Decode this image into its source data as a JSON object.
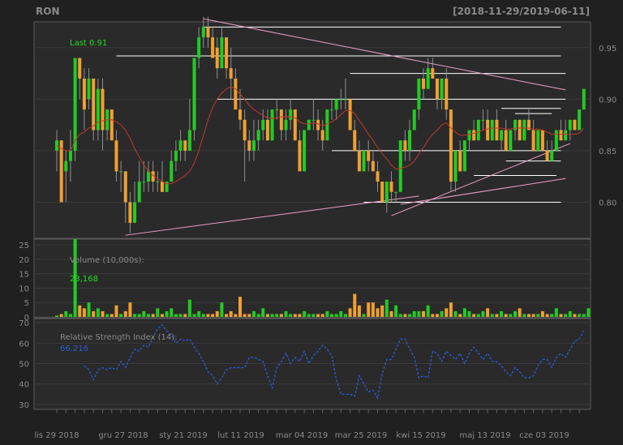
{
  "chart_data": {
    "type": "candlestick",
    "symbol": "RON",
    "date_range": "[2018-11-29/2019-06-11]",
    "last_label": "Last 0.91",
    "x_tick_labels": [
      "lis 29 2018",
      "gru 27 2018",
      "sty 21 2019",
      "lut 11 2019",
      "mar 04 2019",
      "mar 25 2019",
      "kwi 15 2019",
      "maj 13 2019",
      "cze 03 2019"
    ],
    "price_axis": {
      "ylim": [
        0.765,
        0.975
      ],
      "ticks": [
        0.8,
        0.85,
        0.9,
        0.95
      ],
      "tick_labels": [
        "0.80",
        "0.85",
        "0.90",
        "0.95"
      ]
    },
    "volume_panel": {
      "title": "Volume (10,000s):",
      "last_value": "23,168",
      "ylim": [
        0,
        27
      ],
      "ticks": [
        0,
        5,
        10,
        15,
        20,
        25
      ],
      "tick_labels": [
        "0",
        "5",
        "10",
        "15",
        "20",
        "25"
      ]
    },
    "rsi_panel": {
      "title": "Relative Strength Index (14):",
      "last_value": "66.216",
      "ylim": [
        28,
        72
      ],
      "ticks": [
        30,
        40,
        50,
        60,
        70
      ],
      "tick_labels": [
        "30",
        "40",
        "50",
        "60",
        "70"
      ]
    },
    "candles": [
      [
        0.85,
        0.87,
        0.83,
        0.86
      ],
      [
        0.86,
        0.86,
        0.8,
        0.8
      ],
      [
        0.83,
        0.85,
        0.8,
        0.84
      ],
      [
        0.84,
        0.87,
        0.82,
        0.85
      ],
      [
        0.85,
        0.94,
        0.84,
        0.94
      ],
      [
        0.94,
        0.94,
        0.9,
        0.92
      ],
      [
        0.92,
        0.93,
        0.87,
        0.89
      ],
      [
        0.9,
        0.93,
        0.89,
        0.92
      ],
      [
        0.92,
        0.92,
        0.86,
        0.87
      ],
      [
        0.87,
        0.92,
        0.86,
        0.91
      ],
      [
        0.91,
        0.92,
        0.85,
        0.87
      ],
      [
        0.87,
        0.89,
        0.86,
        0.89
      ],
      [
        0.89,
        0.89,
        0.86,
        0.86
      ],
      [
        0.86,
        0.87,
        0.82,
        0.83
      ],
      [
        0.83,
        0.84,
        0.81,
        0.83
      ],
      [
        0.83,
        0.83,
        0.78,
        0.8
      ],
      [
        0.8,
        0.81,
        0.77,
        0.78
      ],
      [
        0.78,
        0.82,
        0.78,
        0.8
      ],
      [
        0.8,
        0.84,
        0.8,
        0.82
      ],
      [
        0.82,
        0.84,
        0.81,
        0.82
      ],
      [
        0.82,
        0.84,
        0.81,
        0.83
      ],
      [
        0.83,
        0.84,
        0.81,
        0.82
      ],
      [
        0.82,
        0.83,
        0.81,
        0.82
      ],
      [
        0.82,
        0.84,
        0.81,
        0.81
      ],
      [
        0.81,
        0.82,
        0.81,
        0.82
      ],
      [
        0.82,
        0.85,
        0.82,
        0.84
      ],
      [
        0.84,
        0.86,
        0.83,
        0.85
      ],
      [
        0.85,
        0.87,
        0.84,
        0.86
      ],
      [
        0.86,
        0.86,
        0.84,
        0.85
      ],
      [
        0.85,
        0.9,
        0.85,
        0.87
      ],
      [
        0.87,
        0.94,
        0.86,
        0.94
      ],
      [
        0.94,
        0.97,
        0.93,
        0.96
      ],
      [
        0.96,
        0.98,
        0.95,
        0.97
      ],
      [
        0.97,
        0.98,
        0.95,
        0.96
      ],
      [
        0.96,
        0.97,
        0.94,
        0.94
      ],
      [
        0.95,
        0.96,
        0.92,
        0.93
      ],
      [
        0.93,
        0.97,
        0.93,
        0.96
      ],
      [
        0.96,
        0.96,
        0.92,
        0.93
      ],
      [
        0.93,
        0.95,
        0.9,
        0.92
      ],
      [
        0.92,
        0.93,
        0.89,
        0.89
      ],
      [
        0.89,
        0.91,
        0.87,
        0.88
      ],
      [
        0.88,
        0.89,
        0.82,
        0.86
      ],
      [
        0.86,
        0.87,
        0.84,
        0.85
      ],
      [
        0.85,
        0.88,
        0.84,
        0.86
      ],
      [
        0.86,
        0.88,
        0.85,
        0.87
      ],
      [
        0.87,
        0.89,
        0.86,
        0.88
      ],
      [
        0.88,
        0.89,
        0.86,
        0.86
      ],
      [
        0.86,
        0.89,
        0.86,
        0.89
      ],
      [
        0.89,
        0.9,
        0.88,
        0.89
      ],
      [
        0.89,
        0.89,
        0.86,
        0.87
      ],
      [
        0.87,
        0.89,
        0.86,
        0.88
      ],
      [
        0.88,
        0.9,
        0.87,
        0.89
      ],
      [
        0.89,
        0.89,
        0.86,
        0.86
      ],
      [
        0.86,
        0.87,
        0.83,
        0.83
      ],
      [
        0.83,
        0.87,
        0.83,
        0.87
      ],
      [
        0.87,
        0.88,
        0.87,
        0.88
      ],
      [
        0.88,
        0.9,
        0.87,
        0.88
      ],
      [
        0.88,
        0.89,
        0.86,
        0.87
      ],
      [
        0.87,
        0.88,
        0.85,
        0.86
      ],
      [
        0.86,
        0.89,
        0.86,
        0.89
      ],
      [
        0.89,
        0.9,
        0.88,
        0.89
      ],
      [
        0.89,
        0.9,
        0.88,
        0.9
      ],
      [
        0.9,
        0.91,
        0.89,
        0.9
      ],
      [
        0.9,
        0.92,
        0.89,
        0.9
      ],
      [
        0.9,
        0.9,
        0.87,
        0.87
      ],
      [
        0.87,
        0.88,
        0.85,
        0.85
      ],
      [
        0.85,
        0.86,
        0.83,
        0.83
      ],
      [
        0.83,
        0.85,
        0.83,
        0.85
      ],
      [
        0.85,
        0.86,
        0.83,
        0.84
      ],
      [
        0.84,
        0.85,
        0.83,
        0.83
      ],
      [
        0.83,
        0.84,
        0.81,
        0.82
      ],
      [
        0.82,
        0.82,
        0.8,
        0.8
      ],
      [
        0.8,
        0.82,
        0.79,
        0.82
      ],
      [
        0.82,
        0.83,
        0.8,
        0.81
      ],
      [
        0.81,
        0.81,
        0.8,
        0.81
      ],
      [
        0.81,
        0.86,
        0.81,
        0.86
      ],
      [
        0.86,
        0.87,
        0.84,
        0.85
      ],
      [
        0.85,
        0.88,
        0.84,
        0.87
      ],
      [
        0.87,
        0.89,
        0.87,
        0.89
      ],
      [
        0.89,
        0.92,
        0.88,
        0.92
      ],
      [
        0.92,
        0.93,
        0.9,
        0.91
      ],
      [
        0.91,
        0.94,
        0.91,
        0.93
      ],
      [
        0.93,
        0.94,
        0.92,
        0.92
      ],
      [
        0.92,
        0.92,
        0.89,
        0.9
      ],
      [
        0.9,
        0.92,
        0.89,
        0.92
      ],
      [
        0.92,
        0.93,
        0.88,
        0.89
      ],
      [
        0.89,
        0.89,
        0.81,
        0.82
      ],
      [
        0.82,
        0.85,
        0.81,
        0.85
      ],
      [
        0.85,
        0.86,
        0.83,
        0.83
      ],
      [
        0.83,
        0.86,
        0.83,
        0.86
      ],
      [
        0.86,
        0.87,
        0.85,
        0.87
      ],
      [
        0.87,
        0.88,
        0.86,
        0.86
      ],
      [
        0.86,
        0.88,
        0.86,
        0.88
      ],
      [
        0.88,
        0.89,
        0.87,
        0.88
      ],
      [
        0.88,
        0.89,
        0.86,
        0.86
      ],
      [
        0.86,
        0.88,
        0.86,
        0.88
      ],
      [
        0.88,
        0.89,
        0.86,
        0.86
      ],
      [
        0.86,
        0.87,
        0.85,
        0.87
      ],
      [
        0.87,
        0.88,
        0.85,
        0.85
      ],
      [
        0.85,
        0.87,
        0.85,
        0.87
      ],
      [
        0.87,
        0.88,
        0.86,
        0.88
      ],
      [
        0.88,
        0.88,
        0.86,
        0.86
      ],
      [
        0.86,
        0.88,
        0.86,
        0.88
      ],
      [
        0.88,
        0.89,
        0.87,
        0.87
      ],
      [
        0.87,
        0.88,
        0.85,
        0.85
      ],
      [
        0.85,
        0.87,
        0.85,
        0.87
      ],
      [
        0.87,
        0.87,
        0.85,
        0.85
      ],
      [
        0.85,
        0.86,
        0.84,
        0.84
      ],
      [
        0.84,
        0.86,
        0.84,
        0.85
      ],
      [
        0.85,
        0.87,
        0.85,
        0.87
      ],
      [
        0.87,
        0.88,
        0.86,
        0.86
      ],
      [
        0.86,
        0.88,
        0.86,
        0.87
      ],
      [
        0.87,
        0.88,
        0.86,
        0.88
      ],
      [
        0.88,
        0.88,
        0.87,
        0.87
      ],
      [
        0.87,
        0.89,
        0.87,
        0.89
      ],
      [
        0.89,
        0.91,
        0.89,
        0.91
      ]
    ],
    "sma": [
      0.855,
      0.852,
      0.85,
      0.85,
      0.86,
      0.866,
      0.868,
      0.872,
      0.874,
      0.878,
      0.879,
      0.88,
      0.88,
      0.878,
      0.875,
      0.87,
      0.862,
      0.852,
      0.844,
      0.836,
      0.83,
      0.826,
      0.823,
      0.82,
      0.818,
      0.818,
      0.82,
      0.823,
      0.826,
      0.83,
      0.838,
      0.85,
      0.865,
      0.88,
      0.892,
      0.9,
      0.906,
      0.91,
      0.912,
      0.91,
      0.905,
      0.9,
      0.894,
      0.89,
      0.887,
      0.884,
      0.882,
      0.881,
      0.882,
      0.883,
      0.883,
      0.883,
      0.882,
      0.878,
      0.876,
      0.876,
      0.877,
      0.876,
      0.874,
      0.876,
      0.878,
      0.881,
      0.885,
      0.889,
      0.889,
      0.886,
      0.879,
      0.873,
      0.866,
      0.86,
      0.853,
      0.847,
      0.842,
      0.836,
      0.832,
      0.833,
      0.834,
      0.836,
      0.84,
      0.847,
      0.853,
      0.86,
      0.866,
      0.87,
      0.875,
      0.877,
      0.872,
      0.868,
      0.865,
      0.865,
      0.866,
      0.867,
      0.868,
      0.87,
      0.871,
      0.872,
      0.872,
      0.872,
      0.871,
      0.871,
      0.872,
      0.872,
      0.872,
      0.872,
      0.871,
      0.871,
      0.87,
      0.868,
      0.866,
      0.866,
      0.866,
      0.866,
      0.866,
      0.866,
      0.867,
      0.872
    ],
    "volume": [
      0.5,
      1,
      2,
      1,
      27,
      4,
      3,
      5,
      2,
      3,
      2,
      1,
      1,
      4,
      1,
      2,
      5,
      1,
      1,
      2,
      1,
      1,
      3,
      1,
      2,
      3,
      1,
      1,
      1,
      6,
      1,
      2,
      1,
      1,
      1,
      2,
      5,
      1,
      2,
      1,
      7,
      1,
      1,
      2,
      1,
      3,
      1,
      1,
      1,
      1,
      2,
      1,
      1,
      1,
      2,
      1,
      1,
      1,
      1,
      2,
      1,
      1,
      2,
      1,
      3,
      8,
      4,
      1,
      5,
      5,
      3,
      4,
      6,
      2,
      4,
      1,
      1,
      1,
      2,
      2,
      2,
      4,
      1,
      1,
      2,
      3,
      5,
      2,
      1,
      3,
      2,
      1,
      1,
      2,
      3,
      1,
      1,
      2,
      1,
      1,
      2,
      3,
      1,
      1,
      1,
      1,
      2,
      1,
      1,
      3,
      1,
      1,
      2,
      1,
      1,
      1,
      3
    ],
    "rsi": [
      49,
      47,
      42,
      47,
      48,
      47,
      48,
      47,
      51,
      48,
      53,
      57,
      56,
      59,
      58,
      63,
      67,
      69,
      66,
      64,
      60,
      62,
      61,
      62,
      58,
      55,
      51,
      46,
      44,
      40,
      43,
      47,
      48,
      48,
      48,
      48,
      53,
      53,
      52,
      51,
      44,
      38,
      48,
      51,
      55,
      50,
      53,
      51,
      56,
      50,
      54,
      56,
      59,
      57,
      54,
      42,
      35,
      35,
      35,
      34,
      44,
      40,
      36,
      37,
      33,
      45,
      52,
      52,
      57,
      62,
      62,
      57,
      53,
      43,
      44,
      43,
      56,
      55,
      51,
      56,
      54,
      52,
      55,
      50,
      55,
      58,
      55,
      52,
      55,
      51,
      51,
      49,
      46,
      44,
      48,
      46,
      43,
      43,
      44,
      49,
      52,
      52,
      48,
      53,
      55,
      53,
      57,
      61,
      62,
      66
    ],
    "resistance_lines": [
      {
        "y": 0.97,
        "from": 32,
        "to": 110
      },
      {
        "y": 0.942,
        "from": 13,
        "to": 110
      },
      {
        "y": 0.925,
        "from": 64,
        "to": 111
      },
      {
        "y": 0.9,
        "from": 35,
        "to": 111
      },
      {
        "y": 0.891,
        "from": 97,
        "to": 110
      },
      {
        "y": 0.886,
        "from": 100,
        "to": 108
      },
      {
        "y": 0.85,
        "from": 60,
        "to": 110
      },
      {
        "y": 0.84,
        "from": 98,
        "to": 110
      },
      {
        "y": 0.826,
        "from": 91,
        "to": 109
      },
      {
        "y": 0.8,
        "from": 67,
        "to": 110
      }
    ],
    "trend_lines": [
      {
        "p1": [
          32,
          0.978
        ],
        "p2": [
          111,
          0.909
        ]
      },
      {
        "p1": [
          15,
          0.768
        ],
        "p2": [
          79,
          0.806
        ]
      },
      {
        "p1": [
          73,
          0.787
        ],
        "p2": [
          112,
          0.857
        ]
      },
      {
        "p1": [
          75,
          0.798
        ],
        "p2": [
          111,
          0.823
        ]
      }
    ]
  }
}
